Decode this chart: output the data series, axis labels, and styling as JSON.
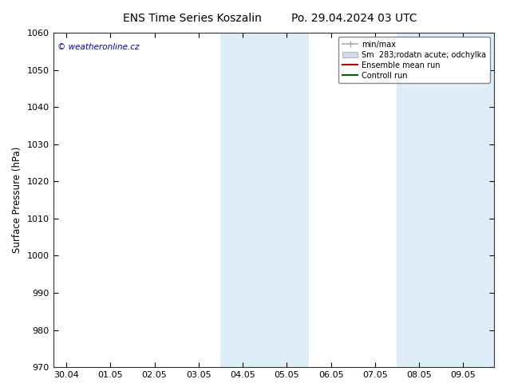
{
  "title_left": "ENS Time Series Koszalin",
  "title_right": "Po. 29.04.2024 03 UTC",
  "ylabel": "Surface Pressure (hPa)",
  "ylim": [
    970,
    1060
  ],
  "yticks": [
    970,
    980,
    990,
    1000,
    1010,
    1020,
    1030,
    1040,
    1050,
    1060
  ],
  "xtick_labels": [
    "30.04",
    "01.05",
    "02.05",
    "03.05",
    "04.05",
    "05.05",
    "06.05",
    "07.05",
    "08.05",
    "09.05"
  ],
  "xtick_positions": [
    0,
    1,
    2,
    3,
    4,
    5,
    6,
    7,
    8,
    9
  ],
  "xlim": [
    -0.3,
    9.7
  ],
  "shade_bands": [
    {
      "xmin": 3.5,
      "xmax": 4.5,
      "color": "#ddeef8"
    },
    {
      "xmin": 4.5,
      "xmax": 5.5,
      "color": "#ddeef8"
    },
    {
      "xmin": 7.5,
      "xmax": 9.7,
      "color": "#ddeef8"
    }
  ],
  "watermark": "© weatheronline.cz",
  "watermark_color": "#0000cc",
  "legend_labels": [
    "min/max",
    "Sm  283;rodatn acute; odchylka",
    "Ensemble mean run",
    "Controll run"
  ],
  "legend_colors": [
    "#aaaaaa",
    "#ccdcec",
    "#cc0000",
    "#006600"
  ],
  "bg_color": "#ffffff",
  "plot_bg_color": "#ffffff",
  "title_fontsize": 10,
  "tick_fontsize": 8,
  "ylabel_fontsize": 8.5
}
